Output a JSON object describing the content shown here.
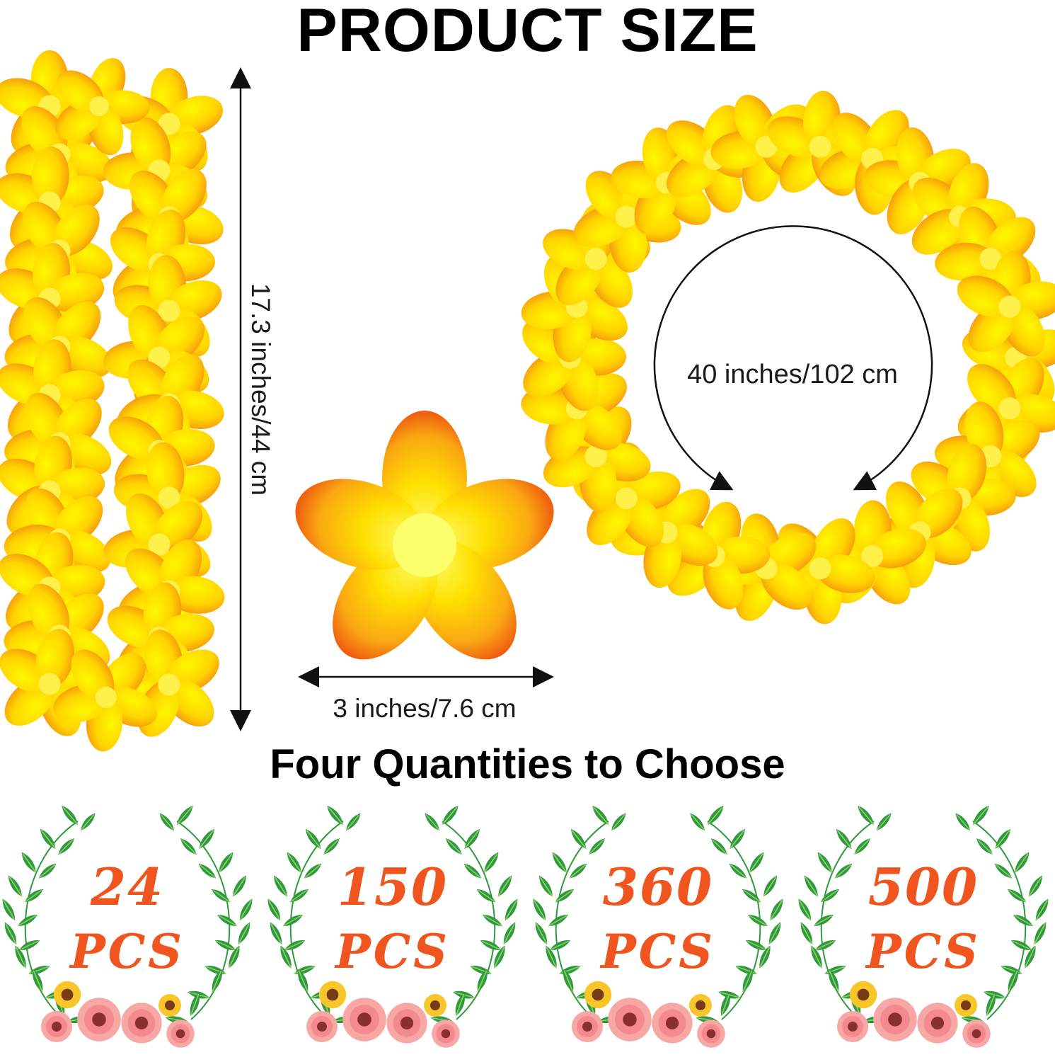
{
  "title": "PRODUCT SIZE",
  "dimensions": {
    "lei_length": "17.3 inches/44 cm",
    "flower_width": "3 inches/7.6 cm",
    "circumference": "40 inches/102 cm"
  },
  "subtitle": "Four Quantities to Choose",
  "quantities": [
    {
      "count": "24",
      "unit": "PCS"
    },
    {
      "count": "150",
      "unit": "PCS"
    },
    {
      "count": "360",
      "unit": "PCS"
    },
    {
      "count": "500",
      "unit": "PCS"
    }
  ],
  "colors": {
    "petal_yellow": "#ffe200",
    "petal_orange": "#f58a0a",
    "leaf_green": "#2e9a3c",
    "number_orange": "#f0551f",
    "pink_flower": "#f7a8a4"
  }
}
